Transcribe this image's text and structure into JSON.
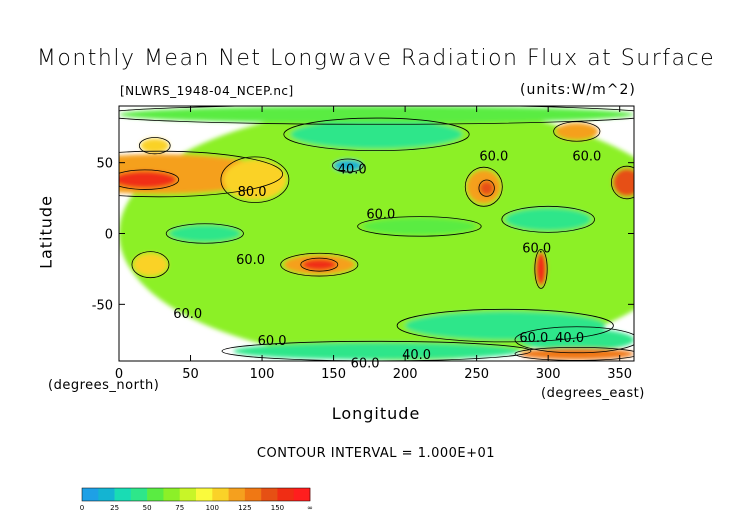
{
  "chart_data": {
    "type": "heatmap",
    "title": "Monthly Mean Net Longwave Radiation Flux at Surface",
    "file_label": "[NLWRS_1948-04_NCEP.nc]",
    "units_label": "(units:W/m^2)",
    "xlabel": "Longitude",
    "ylabel": "Latitude",
    "x_unit_label": "(degrees_east)",
    "y_unit_label": "(degrees_north)",
    "xlim": [
      0,
      360
    ],
    "ylim": [
      -90,
      90
    ],
    "x_ticks": [
      0,
      50,
      100,
      150,
      200,
      250,
      300,
      350
    ],
    "y_ticks": [
      50,
      0,
      -50
    ],
    "contour_interval_label": "CONTOUR INTERVAL = 1.000E+01",
    "contour_labels": [
      {
        "text": "60.0",
        "lon": 262,
        "lat": 55
      },
      {
        "text": "60.0",
        "lon": 327,
        "lat": 55
      },
      {
        "text": "40.0",
        "lon": 163,
        "lat": 46
      },
      {
        "text": "60.0",
        "lon": 183,
        "lat": 14
      },
      {
        "text": "80.0",
        "lon": 93,
        "lat": 30
      },
      {
        "text": "60.0",
        "lon": 92,
        "lat": -18
      },
      {
        "text": "60.0",
        "lon": 292,
        "lat": -10
      },
      {
        "text": "60.0",
        "lon": 48,
        "lat": -56
      },
      {
        "text": "60.0",
        "lon": 107,
        "lat": -75
      },
      {
        "text": "60.0",
        "lon": 290,
        "lat": -73
      },
      {
        "text": "40.0",
        "lon": 315,
        "lat": -73
      },
      {
        "text": "40.0",
        "lon": 208,
        "lat": -85
      },
      {
        "text": "60.0",
        "lon": 172,
        "lat": -91
      }
    ],
    "colorbar": {
      "labels": [
        "0",
        "25",
        "50",
        "75",
        "100",
        "125",
        "150",
        "∞"
      ],
      "colors": [
        "#1ea0e6",
        "#14b4d2",
        "#19dcb4",
        "#2ee68a",
        "#5aec42",
        "#8cf028",
        "#c8f528",
        "#fafa3c",
        "#fad228",
        "#f5a01e",
        "#f07814",
        "#e65014",
        "#f02d14",
        "#ff1e1e"
      ]
    },
    "regions": [
      {
        "lon": 200,
        "lat": 0,
        "rx": 200,
        "ry": 90,
        "value": 62
      },
      {
        "lon": 28,
        "lat": 42,
        "rx": 80,
        "ry": 14,
        "value": 110
      },
      {
        "lon": 18,
        "lat": 38,
        "rx": 22,
        "ry": 6,
        "value": 140
      },
      {
        "lon": 95,
        "lat": 38,
        "rx": 22,
        "ry": 14,
        "value": 95
      },
      {
        "lon": 255,
        "lat": 33,
        "rx": 12,
        "ry": 12,
        "value": 115
      },
      {
        "lon": 257,
        "lat": 32,
        "rx": 5,
        "ry": 5,
        "value": 135
      },
      {
        "lon": 355,
        "lat": 36,
        "rx": 10,
        "ry": 10,
        "value": 135
      },
      {
        "lon": 140,
        "lat": -22,
        "rx": 25,
        "ry": 7,
        "value": 115
      },
      {
        "lon": 140,
        "lat": -22,
        "rx": 12,
        "ry": 4,
        "value": 140
      },
      {
        "lon": 22,
        "lat": -22,
        "rx": 12,
        "ry": 8,
        "value": 95
      },
      {
        "lon": 295,
        "lat": -25,
        "rx": 4,
        "ry": 12,
        "value": 140
      },
      {
        "lon": 160,
        "lat": 48,
        "rx": 10,
        "ry": 4,
        "value": 20
      },
      {
        "lon": 60,
        "lat": 0,
        "rx": 25,
        "ry": 6,
        "value": 45
      },
      {
        "lon": 210,
        "lat": 5,
        "rx": 40,
        "ry": 6,
        "value": 48
      },
      {
        "lon": 300,
        "lat": 10,
        "rx": 30,
        "ry": 8,
        "value": 46
      },
      {
        "lon": 180,
        "lat": 70,
        "rx": 60,
        "ry": 10,
        "value": 45
      },
      {
        "lon": 270,
        "lat": -65,
        "rx": 70,
        "ry": 10,
        "value": 45
      },
      {
        "lon": 320,
        "lat": -75,
        "rx": 40,
        "ry": 8,
        "value": 35
      },
      {
        "lon": 180,
        "lat": -83,
        "rx": 100,
        "ry": 6,
        "value": 40
      },
      {
        "lon": 320,
        "lat": -85,
        "rx": 40,
        "ry": 4,
        "value": 120
      },
      {
        "lon": 180,
        "lat": 84,
        "rx": 180,
        "ry": 6,
        "value": 50
      },
      {
        "lon": 320,
        "lat": 72,
        "rx": 15,
        "ry": 6,
        "value": 110
      },
      {
        "lon": 25,
        "lat": 62,
        "rx": 10,
        "ry": 5,
        "value": 100
      }
    ]
  }
}
